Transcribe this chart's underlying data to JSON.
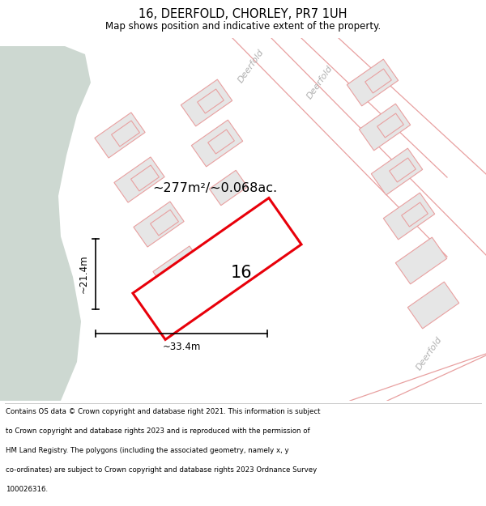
{
  "title": "16, DEERFOLD, CHORLEY, PR7 1UH",
  "subtitle": "Map shows position and indicative extent of the property.",
  "bg_map_color": "#f0f0f0",
  "green_area_color": "#cdd8d1",
  "road_color": "#ffffff",
  "plot_outline_color": "#e8000a",
  "building_fill": "#e6e6e6",
  "building_edge": "#e8a0a0",
  "road_edge": "#e8a0a0",
  "area_text": "~277m²/~0.068ac.",
  "dim_width": "~33.4m",
  "dim_height": "~21.4m",
  "house_number": "16",
  "title_fontsize": 10.5,
  "subtitle_fontsize": 8.5,
  "footer_fontsize": 6.2,
  "footer_lines": [
    "Contains OS data © Crown copyright and database right 2021. This information is subject",
    "to Crown copyright and database rights 2023 and is reproduced with the permission of",
    "HM Land Registry. The polygons (including the associated geometry, namely x, y",
    "co-ordinates) are subject to Crown copyright and database rights 2023 Ordnance Survey",
    "100026316."
  ],
  "deerfold_label_color": "#b0b0b0",
  "deerfold_fontsize": 8,
  "map_bg": "#f2f2f2"
}
